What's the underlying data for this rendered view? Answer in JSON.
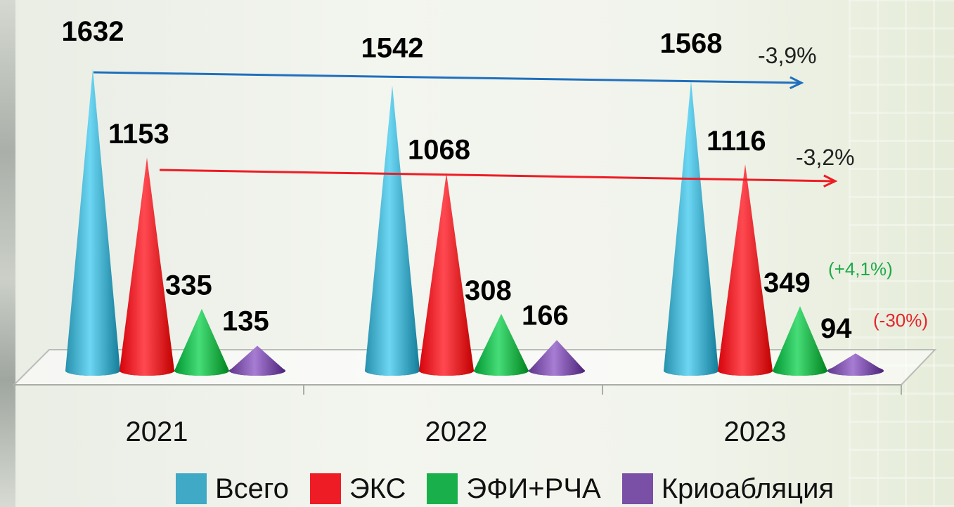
{
  "chart_data": {
    "type": "bar",
    "categories": [
      "2021",
      "2022",
      "2023"
    ],
    "series": [
      {
        "name": "Всего",
        "color": "#3fa9c6",
        "values": [
          1632,
          1542,
          1568
        ]
      },
      {
        "name": "ЭКС",
        "color": "#ee1c24",
        "values": [
          1153,
          1068,
          1116
        ]
      },
      {
        "name": "ЭФИ+РЧА",
        "color": "#19b04b",
        "values": [
          335,
          308,
          349
        ]
      },
      {
        "name": "Криоабляция",
        "color": "#7a4fa6",
        "values": [
          135,
          166,
          94
        ]
      }
    ],
    "value_labels": [
      [
        "1632",
        "1153",
        "335",
        "135"
      ],
      [
        "1542",
        "1068",
        "308",
        "166"
      ],
      [
        "1568",
        "1116",
        "349",
        "94"
      ]
    ],
    "annotations": {
      "total_change": "-3,9%",
      "eks_change": "-3,2%",
      "efi_change": "(+4,1%)",
      "krio_change": "(-30%)"
    },
    "arrow_colors": {
      "total": "#1f6fbd",
      "eks": "#ee1c24"
    },
    "legend_position": "bottom",
    "shape": "cone",
    "grid": false
  }
}
